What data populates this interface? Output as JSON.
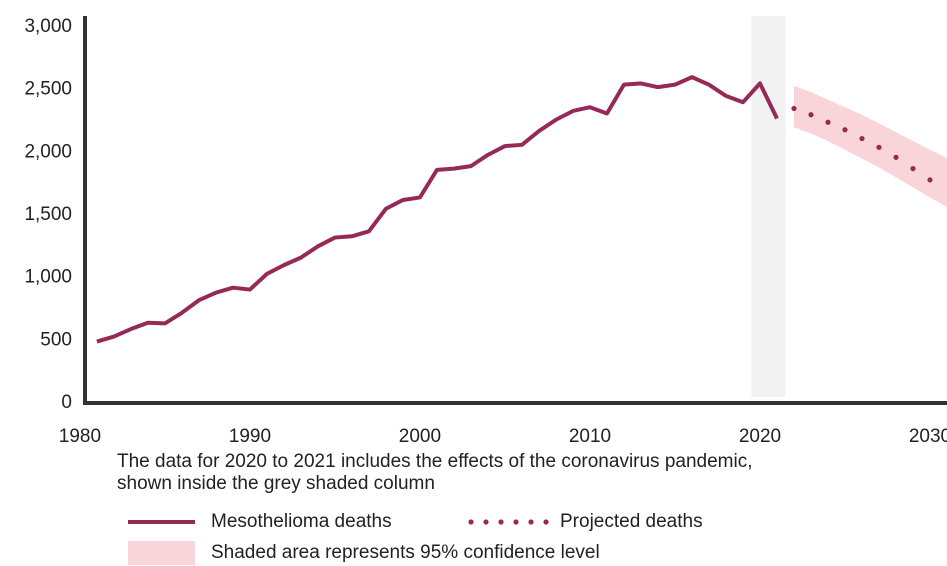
{
  "chart_data": {
    "type": "line",
    "x": [
      1981,
      1982,
      1983,
      1984,
      1985,
      1986,
      1987,
      1988,
      1989,
      1990,
      1991,
      1992,
      1993,
      1994,
      1995,
      1996,
      1997,
      1998,
      1999,
      2000,
      2001,
      2002,
      2003,
      2004,
      2005,
      2006,
      2007,
      2008,
      2009,
      2010,
      2011,
      2012,
      2013,
      2014,
      2015,
      2016,
      2017,
      2018,
      2019,
      2020,
      2021
    ],
    "series": [
      {
        "name": "Mesothelioma deaths",
        "color": "#962a57",
        "style": "solid",
        "values": [
          490,
          530,
          590,
          640,
          635,
          720,
          820,
          880,
          920,
          905,
          1030,
          1100,
          1160,
          1250,
          1320,
          1330,
          1370,
          1550,
          1620,
          1640,
          1860,
          1870,
          1890,
          1980,
          2050,
          2060,
          2170,
          2260,
          2330,
          2360,
          2310,
          2540,
          2550,
          2520,
          2540,
          2600,
          2540,
          2450,
          2400,
          2550,
          2270
        ]
      },
      {
        "name": "Projected deaths",
        "color": "#962a57",
        "style": "dotted",
        "x": [
          2022,
          2023,
          2024,
          2025,
          2026,
          2027,
          2028,
          2029,
          2030,
          2031
        ],
        "values": [
          2350,
          2300,
          2240,
          2180,
          2110,
          2040,
          1960,
          1870,
          1780,
          1700
        ]
      }
    ],
    "confidence_band": {
      "name": "Shaded area represents 95% confidence level",
      "color": "#f9d5da",
      "x": [
        2022,
        2023,
        2024,
        2025,
        2026,
        2027,
        2028,
        2029,
        2030,
        2031
      ],
      "upper": [
        2530,
        2480,
        2420,
        2360,
        2300,
        2230,
        2160,
        2090,
        2020,
        1955
      ],
      "lower": [
        2200,
        2150,
        2090,
        2020,
        1950,
        1880,
        1800,
        1720,
        1640,
        1565
      ]
    },
    "highlight_range": [
      2020,
      2021
    ],
    "highlight_color": "#f2f2f2",
    "annotation": [
      "The data for 2020 to 2021 includes the effects of the coronavirus pandemic,",
      "shown inside the grey shaded column"
    ],
    "xlim": [
      1980.3,
      2031
    ],
    "xticks": [
      1980,
      1990,
      2000,
      2010,
      2020,
      2030
    ],
    "ylim": [
      0,
      3000
    ],
    "yticks": [
      0,
      500,
      {
        "value": 1000,
        "label": "1,000"
      },
      {
        "value": 1500,
        "label": "1,500"
      },
      {
        "value": 2000,
        "label": "2,000"
      },
      {
        "value": 2500,
        "label": "2,500"
      },
      {
        "value": 3000,
        "label": "3,000"
      }
    ],
    "grid": false
  }
}
